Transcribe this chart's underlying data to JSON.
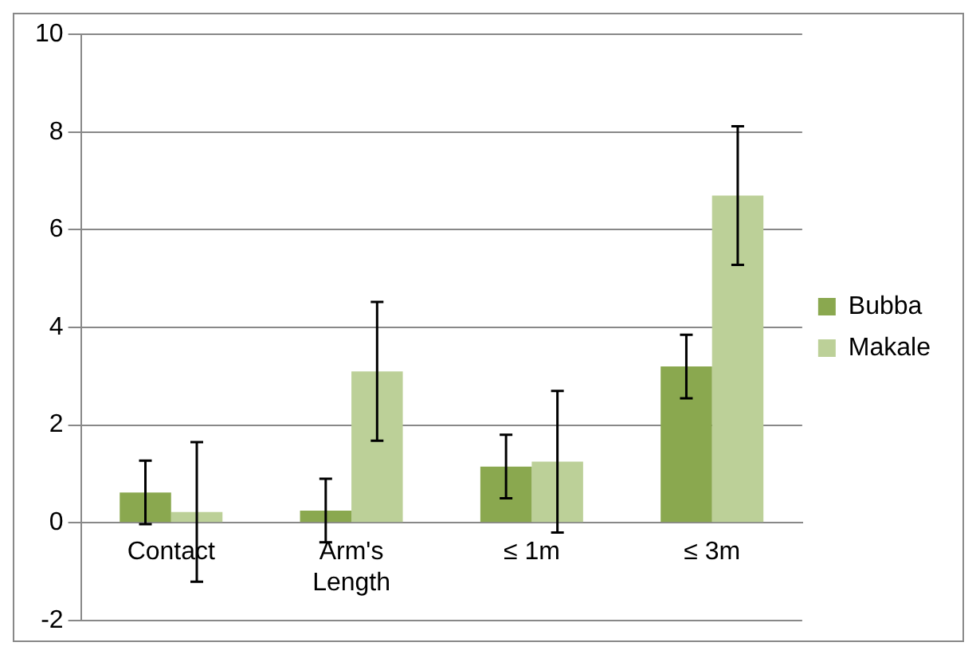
{
  "chart_data": {
    "type": "bar",
    "categories": [
      "Contact",
      "Arm's Length",
      "≤ 1m",
      "≤ 3m"
    ],
    "series": [
      {
        "name": "Bubba",
        "color": "#8aa84f",
        "values": [
          0.62,
          0.25,
          1.15,
          3.2
        ],
        "errors": [
          0.65,
          0.65,
          0.65,
          0.65
        ]
      },
      {
        "name": "Makale",
        "color": "#bcd098",
        "values": [
          0.22,
          3.1,
          1.25,
          6.7
        ],
        "errors": [
          1.43,
          1.42,
          1.45,
          1.42
        ]
      }
    ],
    "ylim": [
      -2,
      10
    ],
    "yticks": [
      -2,
      0,
      2,
      4,
      6,
      8,
      10
    ],
    "grid": "y",
    "legend": "right"
  }
}
